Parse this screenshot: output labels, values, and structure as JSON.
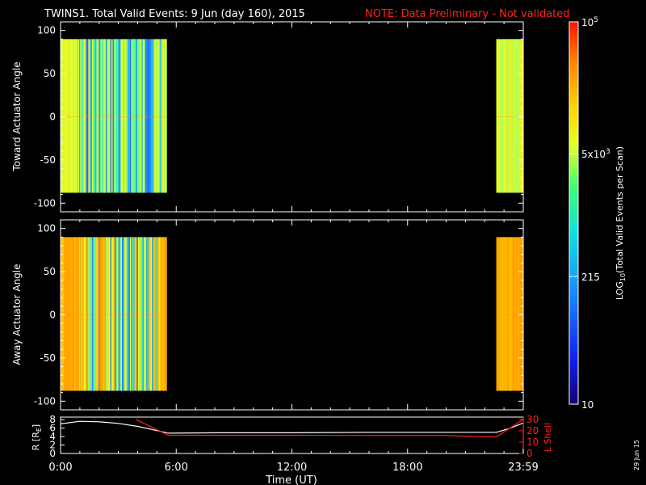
{
  "header": {
    "title": "TWINS1. Total Valid Events:  9 Jun (day 160), 2015",
    "note": "NOTE: Data Preliminary - Not validated",
    "note_color": "#ff2020"
  },
  "footer": {
    "date_stamp": "29 Jun 15"
  },
  "colors": {
    "background": "#000000",
    "axes": "#ffffff",
    "lshell": "#ff2020",
    "radius": "#ffffff"
  },
  "chart_data": [
    {
      "type": "heatmap",
      "ylabel": "Toward Actuator Angle",
      "ylim": [
        -110,
        110
      ],
      "yticks": [
        100,
        50,
        0,
        -50,
        -100
      ],
      "xlim_hours": [
        0,
        24
      ],
      "data_coverage_hours": [
        [
          0.0,
          5.5
        ],
        [
          22.6,
          24.0
        ]
      ],
      "angle_range": [
        -88,
        90
      ],
      "dominant_level": "5x10^3 (yellow-green)"
    },
    {
      "type": "heatmap",
      "ylabel": "Away Actuator Angle",
      "ylim": [
        -110,
        110
      ],
      "yticks": [
        100,
        50,
        0,
        -50,
        -100
      ],
      "xlim_hours": [
        0,
        24
      ],
      "data_coverage_hours": [
        [
          0.0,
          5.5
        ],
        [
          22.6,
          24.0
        ]
      ],
      "angle_range": [
        -88,
        90
      ],
      "dominant_level": "above 5x10^3 (orange)"
    },
    {
      "type": "line",
      "xlabel": "Time (UT)",
      "xticks": [
        "0:00",
        "6:00",
        "12:00",
        "18:00",
        "23:59"
      ],
      "xtick_hours": [
        0,
        6,
        12,
        18,
        24
      ],
      "ylabel_left": "R [R",
      "ylabel_left_sub": "E",
      "ylabel_left_end": "]",
      "ylabel_right": "L Shell",
      "yticks_left": [
        8,
        6,
        4,
        2,
        0
      ],
      "yticks_right": [
        30,
        20,
        10,
        0
      ],
      "ylim_left": [
        0,
        8.6
      ],
      "ylim_right": [
        0,
        32
      ],
      "series": [
        {
          "axis": "left",
          "color": "#ffffff",
          "x": [
            0,
            1,
            2,
            3,
            4,
            5,
            5.6,
            8,
            12,
            16,
            20,
            22.6,
            23.2,
            24
          ],
          "y": [
            7.0,
            7.6,
            7.5,
            7.1,
            6.4,
            5.4,
            4.8,
            4.9,
            4.9,
            5.0,
            5.0,
            5.0,
            5.8,
            7.2
          ]
        },
        {
          "axis": "right",
          "color": "#ff2020",
          "x": [
            3.9,
            5.6,
            8,
            12,
            16,
            20,
            22.6,
            24
          ],
          "y": [
            30,
            16,
            16,
            16,
            15.8,
            15.8,
            14.5,
            30
          ]
        }
      ]
    }
  ],
  "colorbar": {
    "label_pre": "LOG",
    "label_sub": "10",
    "label_post": "(Total Valid Events per Scan)",
    "ticks": [
      {
        "base": "10",
        "exp": "5",
        "level": 1.0
      },
      {
        "base": "5x10",
        "exp": "3",
        "level": 0.655
      },
      {
        "base": "215",
        "exp": "",
        "level": 0.334
      },
      {
        "base": "10",
        "exp": "",
        "level": 0.0
      }
    ]
  }
}
